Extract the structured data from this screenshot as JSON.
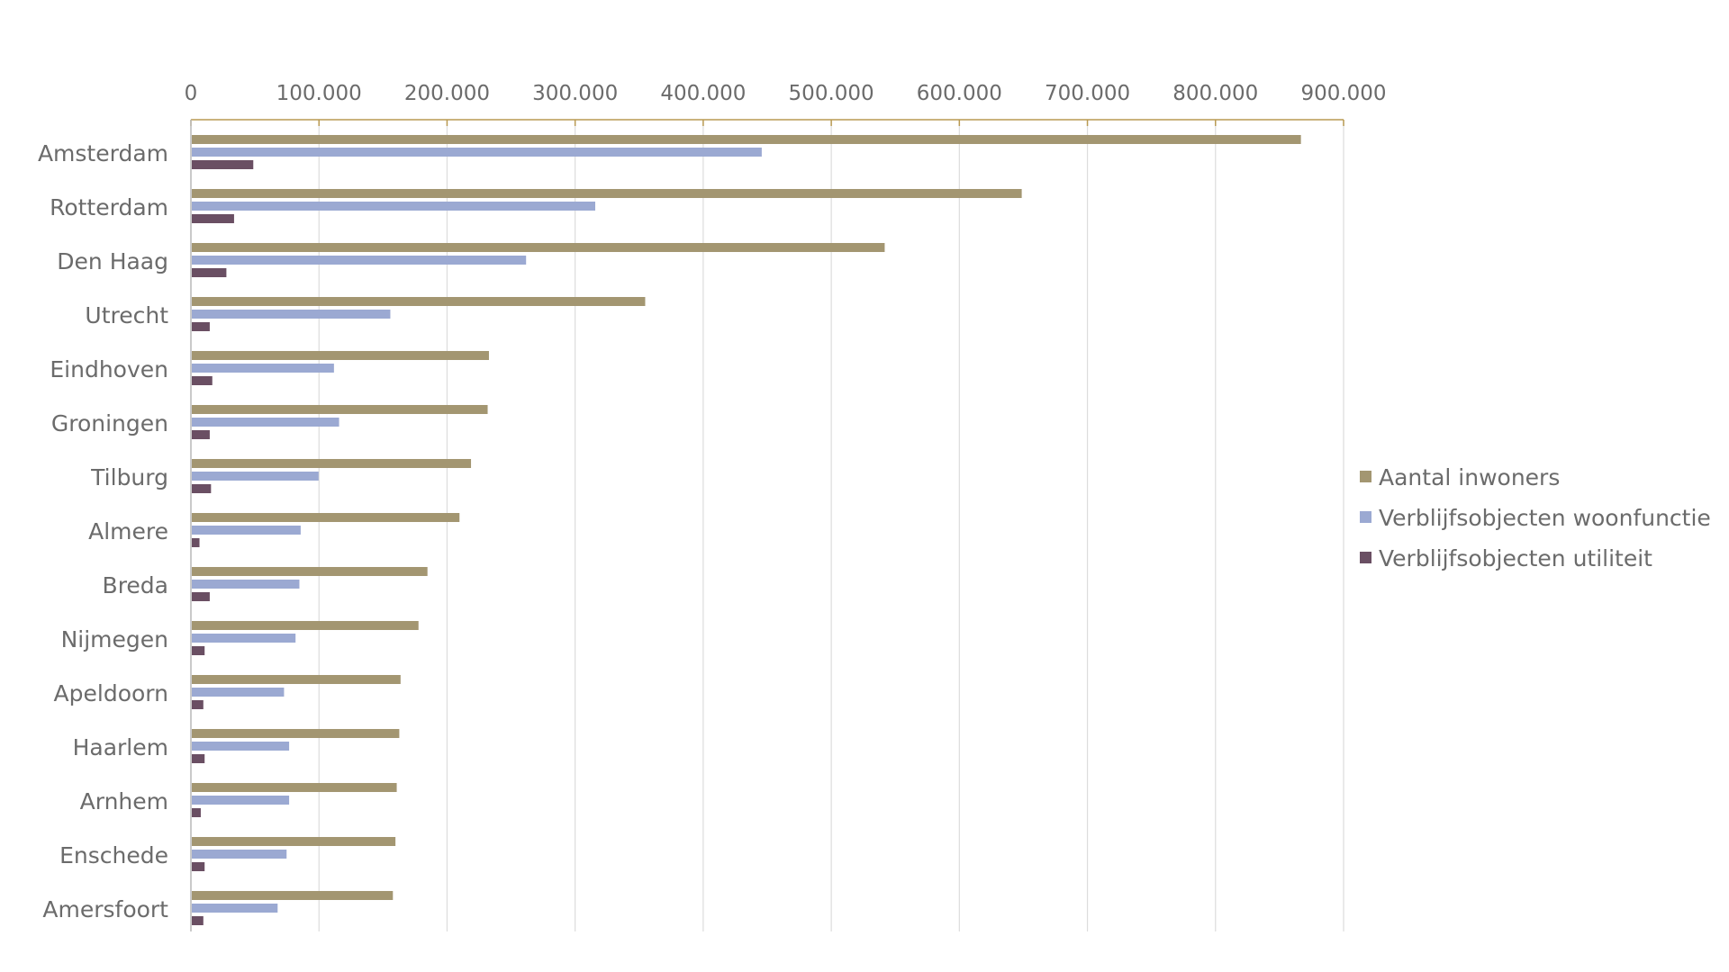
{
  "chart_data": {
    "type": "bar",
    "orientation": "horizontal",
    "title": "",
    "xlabel": "",
    "ylabel": "",
    "xlim": [
      0,
      900000
    ],
    "x_ticks": [
      "0",
      "100.000",
      "200.000",
      "300.000",
      "400.000",
      "500.000",
      "600.000",
      "700.000",
      "800.000",
      "900.000"
    ],
    "x_axis_position": "top",
    "grid": "vertical",
    "legend": "right",
    "categories": [
      "Amsterdam",
      "Rotterdam",
      "Den Haag",
      "Utrecht",
      "Eindhoven",
      "Groningen",
      "Tilburg",
      "Almere",
      "Breda",
      "Nijmegen",
      "Apeldoorn",
      "Haarlem",
      "Arnhem",
      "Enschede",
      "Amersfoort"
    ],
    "series": [
      {
        "name": "Aantal inwoners",
        "color": "#a39671",
        "values": [
          866000,
          648000,
          541000,
          354000,
          232000,
          231000,
          218000,
          209000,
          184000,
          177000,
          163000,
          162000,
          160000,
          159000,
          157000
        ]
      },
      {
        "name": "Verblijfsobjecten woonfunctie",
        "color": "#9ba9d2",
        "values": [
          445000,
          315000,
          261000,
          155000,
          111000,
          115000,
          99000,
          85000,
          84000,
          81000,
          72000,
          76000,
          76000,
          74000,
          67000
        ]
      },
      {
        "name": "Verblijfsobjecten utiliteit",
        "color": "#6a4f63",
        "values": [
          48000,
          33000,
          27000,
          14000,
          16000,
          14000,
          15000,
          6000,
          14000,
          10000,
          9000,
          10000,
          7000,
          10000,
          9000
        ]
      }
    ]
  }
}
